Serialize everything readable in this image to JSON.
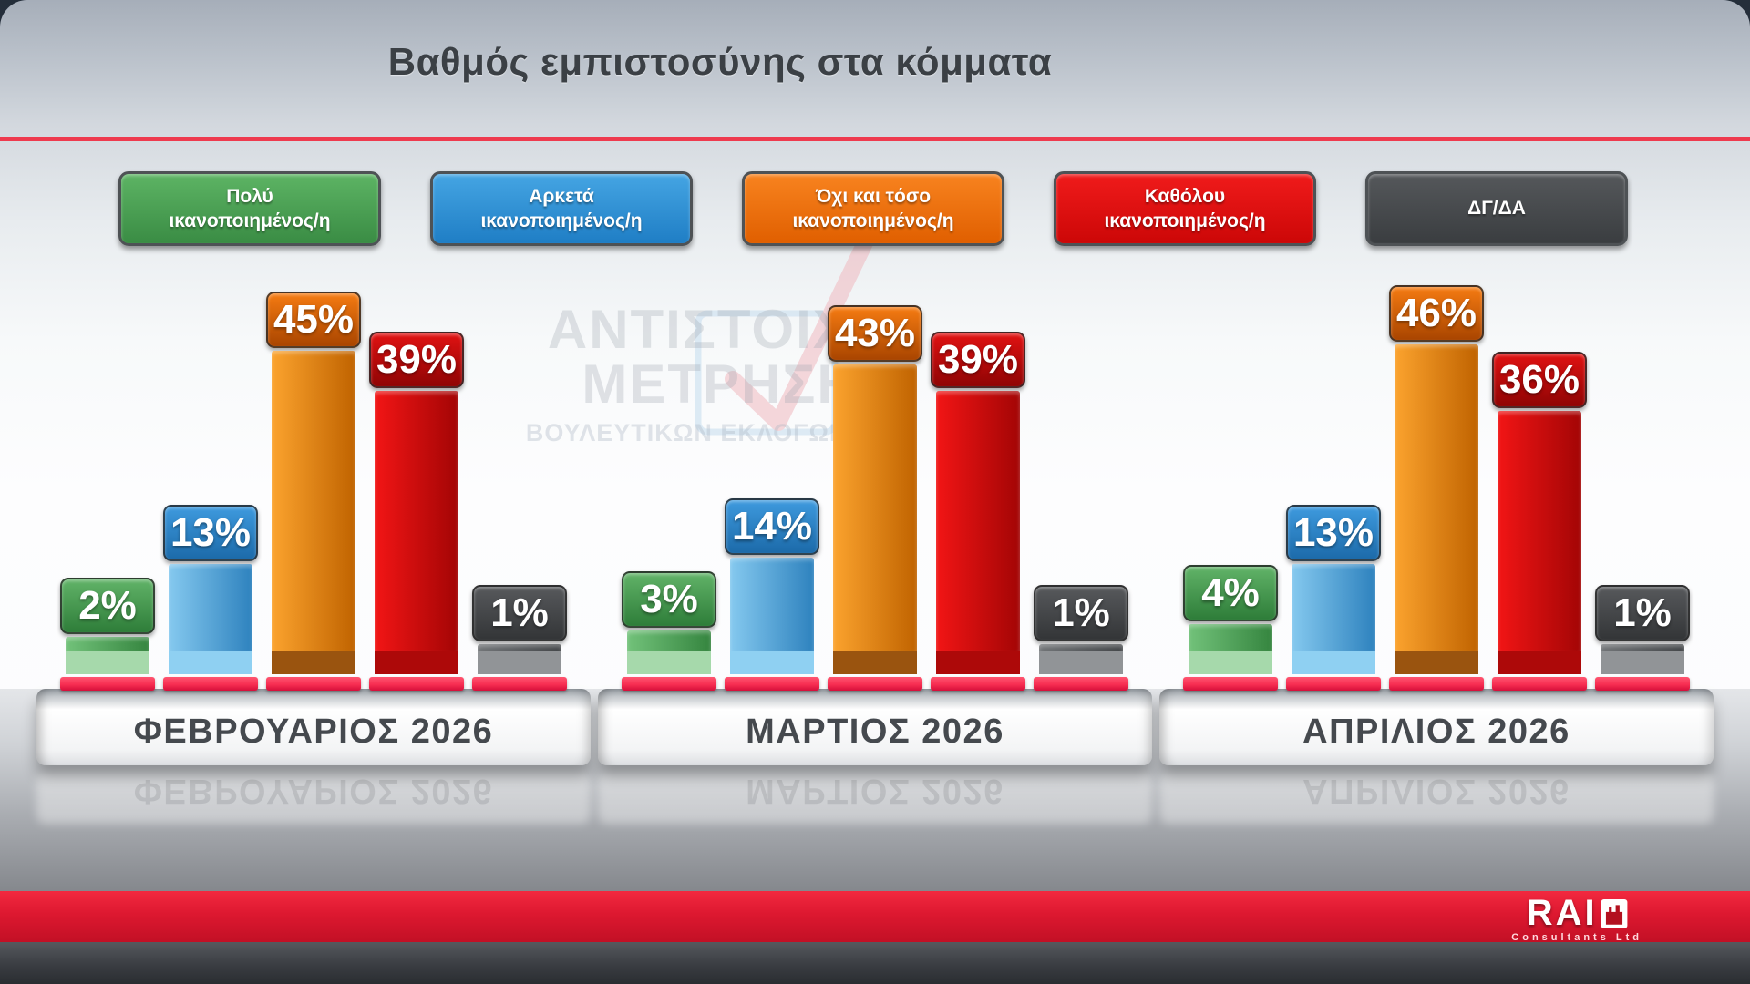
{
  "header": {
    "title": "Βαθμός εμπιστοσύνης στα κόμματα",
    "divider_color": "#ee3a4e"
  },
  "legend": {
    "items": [
      {
        "line1": "Πολύ",
        "line2": "ικανοποιημένος/η",
        "fill_top": "#5db464",
        "fill_bottom": "#3a8c44",
        "text_color": "#ffffff"
      },
      {
        "line1": "Αρκετά",
        "line2": "ικανοποιημένος/η",
        "fill_top": "#45a5e3",
        "fill_bottom": "#1f7ec5",
        "text_color": "#ffffff"
      },
      {
        "line1": "Όχι και τόσο",
        "line2": "ικανοποιημένος/η",
        "fill_top": "#f8831f",
        "fill_bottom": "#e05f00",
        "text_color": "#ffffff"
      },
      {
        "line1": "Καθόλου",
        "line2": "ικανοποιημένος/η",
        "fill_top": "#f01b1b",
        "fill_bottom": "#cc0707",
        "text_color": "#ffffff"
      },
      {
        "line1": "ΔΓ/ΔΑ",
        "line2": "",
        "fill_top": "#55585b",
        "fill_bottom": "#3a3d40",
        "text_color": "#ffffff"
      }
    ]
  },
  "chart_data": {
    "type": "bar",
    "categories": [
      "ΦΕΒΡΟΥΑΡΙΟΣ 2026",
      "ΜΑΡΤΙΟΣ 2026",
      "ΑΠΡΙΛΙΟΣ 2026"
    ],
    "unit": "%",
    "series": [
      {
        "name": "Πολύ ικανοποιημένος/η",
        "values": [
          2,
          3,
          4
        ]
      },
      {
        "name": "Αρκετά ικανοποιημένος/η",
        "values": [
          13,
          14,
          13
        ]
      },
      {
        "name": "Όχι και τόσο ικανοποιημένος/η",
        "values": [
          45,
          43,
          46
        ]
      },
      {
        "name": "Καθόλου ικανοποιημένος/η",
        "values": [
          39,
          39,
          36
        ]
      },
      {
        "name": "ΔΓ/ΔΑ",
        "values": [
          1,
          1,
          1
        ]
      }
    ],
    "ylim": [
      0,
      50
    ],
    "legend_position": "top",
    "grid": false,
    "title": "Βαθμός εμπιστοσύνης στα κόμματα"
  },
  "series_styles": [
    {
      "bar_light": "#72c27a",
      "bar_dark": "#35853f",
      "badge_top": "#61b368",
      "badge_bottom": "#2e7d39",
      "base": "#a6d9ab"
    },
    {
      "bar_light": "#85c9ef",
      "bar_dark": "#2e82be",
      "badge_top": "#3e9ade",
      "badge_bottom": "#1c6aa9",
      "base": "#8fd0f2"
    },
    {
      "bar_light": "#fba32e",
      "bar_dark": "#c06300",
      "badge_top": "#f57b12",
      "badge_bottom": "#a94500",
      "base": "#9a540f"
    },
    {
      "bar_light": "#f21515",
      "bar_dark": "#a30505",
      "badge_top": "#e01212",
      "badge_bottom": "#8f0404",
      "base": "#ad0909"
    },
    {
      "bar_light": "#6e7174",
      "bar_dark": "#3f4245",
      "badge_top": "#57595c",
      "badge_bottom": "#333537",
      "base": "#919497"
    }
  ],
  "slab_color": "#f72e52",
  "watermark": {
    "line1": "ΑΝΤΙΣΤΟΙΧΗ",
    "line2": "ΜΕΤΡΗΣΗ",
    "line3": "ΒΟΥΛΕΥΤΙΚΩΝ ΕΚΛΟΓΩΝ 2026"
  },
  "footer": {
    "brand": "RAI",
    "tagline": "Consultants Ltd"
  }
}
